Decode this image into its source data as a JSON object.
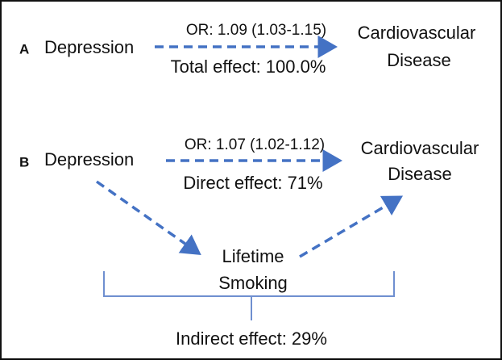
{
  "panels": [
    {
      "letter": "A",
      "source": "Depression",
      "target": [
        "Cardiovascular",
        "Disease"
      ],
      "edge_label": "OR: 1.09 (1.03-1.15)",
      "effect": "Total effect: 100.0%"
    },
    {
      "letter": "B",
      "source": "Depression",
      "target": [
        "Cardiovascular",
        "Disease"
      ],
      "edge_label": "OR: 1.07 (1.02-1.12)",
      "effect": "Direct effect: 71%",
      "mediator": [
        "Lifetime",
        "Smoking"
      ],
      "indirect_effect": "Indirect effect: 29%"
    }
  ]
}
